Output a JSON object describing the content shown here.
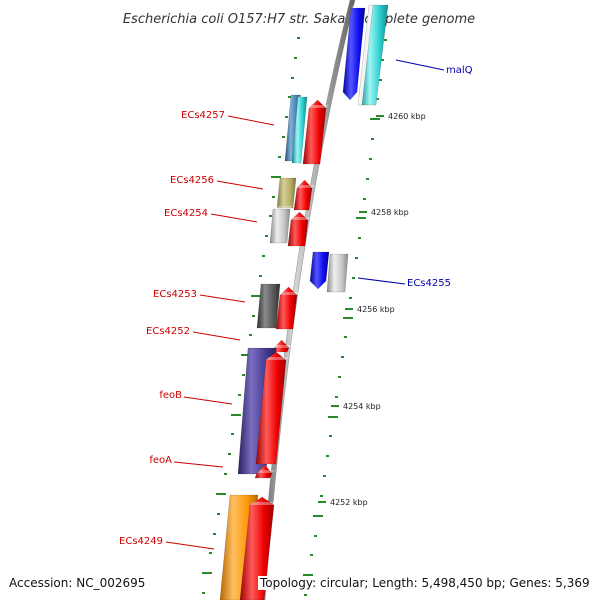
{
  "title": "Escherichia coli O157:H7 str. Sakai, complete genome",
  "footer": {
    "accession": "Accession: NC_002695",
    "topology": "Topology: circular; Length: 5,498,450 bp; Genes: 5,369"
  },
  "colors": {
    "forward_label": "#cc0000",
    "reverse_label": "#0000aa",
    "backbone": "#8c8c8c",
    "tick": "#2a8a2a"
  },
  "ticks": [
    {
      "kbp": 4260,
      "label": "4260 kbp"
    },
    {
      "kbp": 4258,
      "label": "4258 kbp"
    },
    {
      "kbp": 4256,
      "label": "4256 kbp"
    },
    {
      "kbp": 4254,
      "label": "4254 kbp"
    },
    {
      "kbp": 4252,
      "label": "4252 kbp"
    }
  ],
  "genes": [
    {
      "name": "malQ",
      "strand": "reverse"
    },
    {
      "name": "ECs4257",
      "strand": "forward"
    },
    {
      "name": "ECs4256",
      "strand": "forward"
    },
    {
      "name": "ECs4254",
      "strand": "forward"
    },
    {
      "name": "ECs4255",
      "strand": "reverse"
    },
    {
      "name": "ECs4253",
      "strand": "forward"
    },
    {
      "name": "ECs4252",
      "strand": "forward"
    },
    {
      "name": "feoB",
      "strand": "forward"
    },
    {
      "name": "feoA",
      "strand": "forward"
    },
    {
      "name": "ECs4249",
      "strand": "forward"
    }
  ]
}
